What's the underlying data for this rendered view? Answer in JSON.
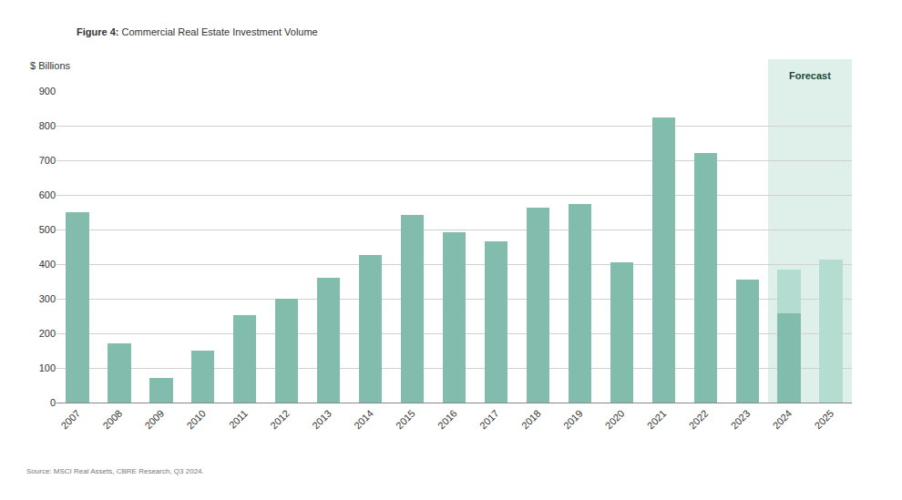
{
  "chart_data": {
    "type": "bar",
    "title": "Figure 4: Commercial Real Estate Investment Volume",
    "y_label": "$ Billions",
    "source": "Source: MSCI Real Assets, CBRE Research, Q3 2024.",
    "categories": [
      "2007",
      "2008",
      "2009",
      "2010",
      "2011",
      "2012",
      "2013",
      "2014",
      "2015",
      "2016",
      "2017",
      "2018",
      "2019",
      "2020",
      "2021",
      "2022",
      "2023",
      "2024",
      "2025"
    ],
    "series": [
      {
        "color": "#82bcad",
        "values": [
          550,
          172,
          70,
          150,
          253,
          300,
          361,
          427,
          541,
          491,
          467,
          562,
          575,
          404,
          823,
          720,
          356,
          259,
          null
        ]
      },
      {
        "color": "#b5dcd1",
        "values": [
          null,
          null,
          null,
          null,
          null,
          null,
          null,
          null,
          null,
          null,
          null,
          null,
          null,
          null,
          null,
          null,
          null,
          124,
          412
        ]
      }
    ],
    "stacked": true,
    "ylim": [
      0,
      900
    ],
    "yticks": [
      0,
      100,
      200,
      300,
      400,
      500,
      600,
      700,
      800,
      900
    ],
    "grid": true,
    "annotations": [
      {
        "text": "Forecast",
        "from": "2024",
        "to": "2025"
      }
    ]
  }
}
